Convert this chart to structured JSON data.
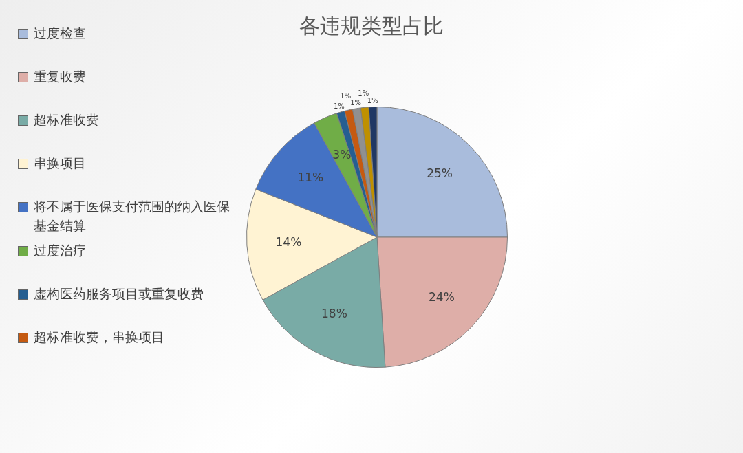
{
  "chart_data": {
    "type": "pie",
    "title": "各违规类型占比",
    "categories": [
      "过度检查",
      "重复收费",
      "超标准收费",
      "串换项目",
      "将不属于医保支付范围的纳入医保基金结算",
      "过度治疗",
      "虚构医药服务项目或重复收费",
      "超标准收费，串换项目",
      null,
      null,
      null
    ],
    "values": [
      25,
      24,
      18,
      14,
      11,
      3,
      1,
      1,
      1,
      1,
      1
    ],
    "colors": [
      "#a9bcdc",
      "#deaea8",
      "#79aba6",
      "#fff3d3",
      "#4472c4",
      "#70ad47",
      "#255e91",
      "#c55a11",
      "#909090",
      "#bf9000",
      "#203864"
    ],
    "value_labels": [
      "25%",
      "24%",
      "18%",
      "14%",
      "11%",
      "3%",
      "1%",
      "1%",
      "1%",
      "1%",
      "1%"
    ],
    "legend": "left"
  }
}
